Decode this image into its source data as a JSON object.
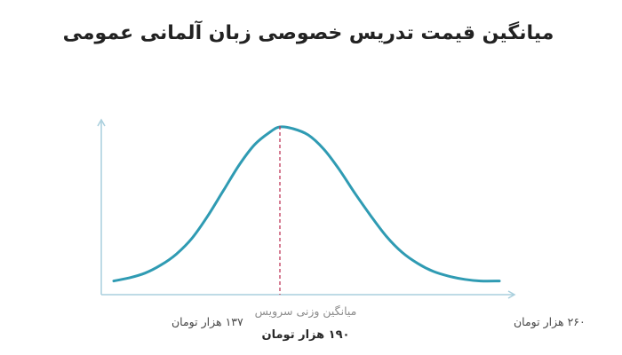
{
  "chart_data": {
    "type": "line",
    "title": "میانگین قیمت تدریس خصوصی زبان آلمانی عمومی",
    "xlabel": "",
    "ylabel": "",
    "x_unit": "هزار تومان",
    "xlim": [
      137,
      260
    ],
    "min_label": "۱۳۷ هزار تومان",
    "max_label": "۲۶۰ هزار تومان",
    "mean_caption": "میانگین وزنی سرویس",
    "mean_label": "۱۹۰ هزار تومان",
    "mean_value": 190,
    "grid": false,
    "legend": "none",
    "series": [
      {
        "values_description": "bell-shaped distribution curve",
        "x": [
          137,
          142,
          147,
          152,
          157,
          162,
          167,
          172,
          177,
          182,
          187,
          190,
          194,
          199,
          204,
          209,
          214,
          219,
          224,
          229,
          234,
          239,
          244,
          249,
          254,
          260
        ],
        "y": [
          0.03,
          0.05,
          0.08,
          0.13,
          0.2,
          0.3,
          0.44,
          0.6,
          0.76,
          0.89,
          0.97,
          1.0,
          0.99,
          0.95,
          0.86,
          0.73,
          0.58,
          0.44,
          0.31,
          0.21,
          0.14,
          0.09,
          0.06,
          0.04,
          0.03,
          0.03
        ]
      }
    ],
    "colors": {
      "curve": "#2f9bb3",
      "axis": "#a9cfdd",
      "mean_line": "#c0395a"
    }
  }
}
